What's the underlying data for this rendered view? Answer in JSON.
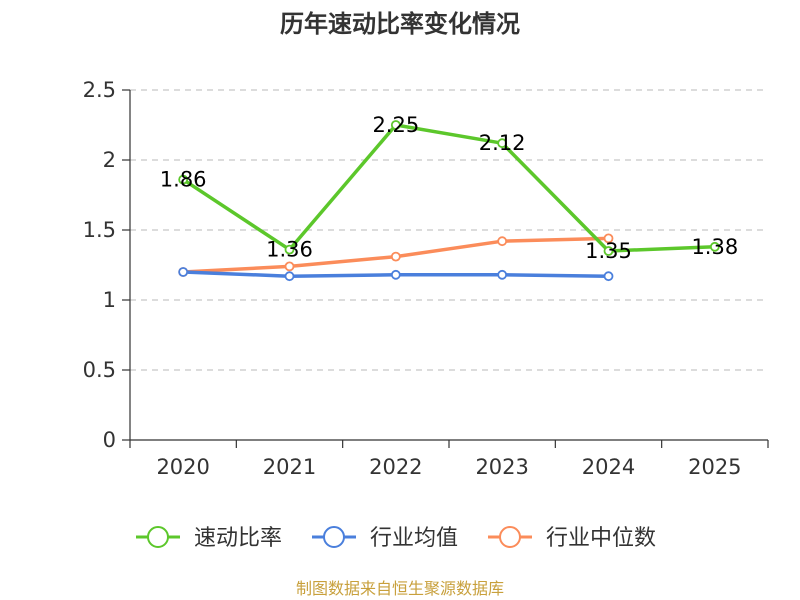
{
  "chart_data": {
    "type": "line",
    "title": "历年速动比率变化情况",
    "categories": [
      "2020",
      "2021",
      "2022",
      "2023",
      "2024",
      "2025"
    ],
    "ylim": [
      0,
      2.5
    ],
    "yticks": [
      "0",
      "0.5",
      "1",
      "1.5",
      "2",
      "2.5"
    ],
    "ytick_values": [
      0,
      0.5,
      1,
      1.5,
      2,
      2.5
    ],
    "grid": true,
    "legend_position": "bottom",
    "series": [
      {
        "name": "速动比率",
        "color": "#5cc72b",
        "values": [
          1.86,
          1.36,
          2.25,
          2.12,
          1.35,
          1.38
        ],
        "labels": [
          "1.86",
          "1.36",
          "2.25",
          "2.12",
          "1.35",
          "1.38"
        ]
      },
      {
        "name": "行业均值",
        "color": "#4a7fdc",
        "values": [
          1.2,
          1.17,
          1.18,
          1.18,
          1.17,
          null
        ]
      },
      {
        "name": "行业中位数",
        "color": "#fb8c5a",
        "values": [
          1.2,
          1.24,
          1.31,
          1.42,
          1.44,
          null
        ]
      }
    ],
    "source": "制图数据来自恒生聚源数据库"
  }
}
